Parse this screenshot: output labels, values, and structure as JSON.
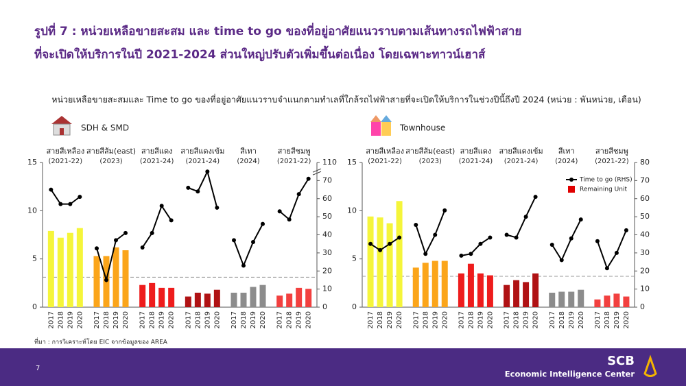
{
  "slide": {
    "title_lines": [
      "รูปที่ 7 : หน่วยเหลือขายสะสม และ time to go ของที่อยู่อาศัยแนวราบตามเส้นทางรถไฟฟ้าสาย",
      "ที่จะเปิดให้บริการในปี 2021-2024 ส่วนใหญ่ปรับตัวเพิ่มขึ้นต่อเนื่อง โดยเฉพาะทาวน์เฮาส์"
    ],
    "subtitle": "หน่วยเหลือขายสะสมและ Time to go ของที่อยู่อาศัยแนวราบจำแนกตามทำเลที่ใกล้รถไฟฟ้าสายที่จะเปิดให้บริการในช่วงปีนี้ถึงปี 2024 (หน่วย : พันหน่วย, เดือน)",
    "source": "ที่มา : การวิเคราะห์โดย EIC จากข้อมูลของ AREA",
    "page_number": "7",
    "brand": "SCB",
    "brand_subtitle": "Economic Intelligence Center"
  },
  "chart_data": [
    {
      "type": "combo",
      "title": "SDH & SMD",
      "line_color": "#000000",
      "ylim": [
        0,
        15
      ],
      "yticks": [
        0,
        5,
        10,
        15
      ],
      "y2lim": [
        0,
        110
      ],
      "y2ticks": [
        0,
        10,
        20,
        30,
        40,
        50,
        60,
        70,
        110
      ],
      "y2break": [
        75,
        105
      ],
      "reference_line": 3.1,
      "groups": [
        {
          "name": "สายสีเหลือง",
          "period": "(2021-22)",
          "color": "#f5f53a",
          "categories": [
            "2017",
            "2018",
            "2019",
            "2020"
          ],
          "values": [
            7.9,
            7.2,
            7.7,
            8.2
          ],
          "time_to_go": [
            65,
            57,
            57,
            61
          ]
        },
        {
          "name": "สายสีส้ม(east)",
          "period": "(2023)",
          "color": "#fba51a",
          "categories": [
            "2017",
            "2018",
            "2019",
            "2020"
          ],
          "values": [
            5.3,
            5.3,
            6.2,
            5.9
          ],
          "time_to_go": [
            32.5,
            15,
            37,
            41
          ]
        },
        {
          "name": "สายสีแดง",
          "period": "(2021-24)",
          "color": "#ee1c1c",
          "categories": [
            "2017",
            "2018",
            "2019",
            "2020"
          ],
          "values": [
            2.3,
            2.5,
            2.0,
            2.0
          ],
          "time_to_go": [
            33,
            41,
            56,
            48
          ]
        },
        {
          "name": "สายสีแดงเข้ม",
          "period": "(2021-24)",
          "color": "#b01214",
          "categories": [
            "2017",
            "2018",
            "2019",
            "2020"
          ],
          "values": [
            1.1,
            1.5,
            1.4,
            1.8
          ],
          "time_to_go": [
            66,
            64,
            105,
            55
          ]
        },
        {
          "name": "สีเทา",
          "period": "(2024)",
          "color": "#8c8c8c",
          "categories": [
            "2017",
            "2018",
            "2019",
            "2020"
          ],
          "values": [
            1.5,
            1.5,
            2.1,
            2.3
          ],
          "time_to_go": [
            37,
            23,
            36,
            46
          ]
        },
        {
          "name": "สายสีชมพู",
          "period": "(2021-22)",
          "color": "#f2403f",
          "categories": [
            "2017",
            "2018",
            "2019",
            "2020"
          ],
          "values": [
            1.2,
            1.4,
            2.0,
            1.9
          ],
          "time_to_go": [
            53,
            48.5,
            62.5,
            71
          ]
        }
      ]
    },
    {
      "type": "combo",
      "title": "Townhouse",
      "line_color": "#000000",
      "ylim": [
        0,
        15
      ],
      "yticks": [
        0,
        5,
        10,
        15
      ],
      "y2lim": [
        0,
        80
      ],
      "y2ticks": [
        0,
        10,
        20,
        30,
        40,
        50,
        60,
        70,
        80
      ],
      "reference_line": 3.2,
      "legend": [
        {
          "name": "Time to go (RHS)",
          "color": "#000000"
        },
        {
          "name": "Remaining Unit",
          "color": "#e00000"
        }
      ],
      "groups": [
        {
          "name": "สายสีเหลือง",
          "period": "(2021-22)",
          "color": "#f5f53a",
          "categories": [
            "2017",
            "2018",
            "2019",
            "2020"
          ],
          "values": [
            9.4,
            9.3,
            8.7,
            11.0
          ],
          "time_to_go": [
            35,
            31.5,
            35,
            38.5
          ]
        },
        {
          "name": "สายสีส้ม(east)",
          "period": "(2023)",
          "color": "#fba51a",
          "categories": [
            "2017",
            "2018",
            "2019",
            "2020"
          ],
          "values": [
            4.1,
            4.6,
            4.8,
            4.8
          ],
          "time_to_go": [
            45.5,
            29.5,
            40,
            53.5
          ]
        },
        {
          "name": "สายสีแดง",
          "period": "(2021-24)",
          "color": "#ee1c1c",
          "categories": [
            "2017",
            "2018",
            "2019",
            "2020"
          ],
          "values": [
            3.5,
            4.5,
            3.5,
            3.3
          ],
          "time_to_go": [
            28.5,
            29.5,
            35,
            38.5
          ]
        },
        {
          "name": "สายสีแดงเข้ม",
          "period": "(2021-24)",
          "color": "#b01214",
          "categories": [
            "2017",
            "2018",
            "2019",
            "2020"
          ],
          "values": [
            2.3,
            2.8,
            2.6,
            3.5
          ],
          "time_to_go": [
            40,
            38.5,
            50,
            61
          ]
        },
        {
          "name": "สีเทา",
          "period": "(2024)",
          "color": "#8c8c8c",
          "categories": [
            "2017",
            "2018",
            "2019",
            "2020"
          ],
          "values": [
            1.5,
            1.6,
            1.6,
            1.8
          ],
          "time_to_go": [
            34.5,
            26,
            38,
            48.5
          ]
        },
        {
          "name": "สายสีชมพู",
          "period": "(2021-22)",
          "color": "#f2403f",
          "categories": [
            "2017",
            "2018",
            "2019",
            "2020"
          ],
          "values": [
            0.8,
            1.2,
            1.4,
            1.1
          ],
          "time_to_go": [
            36.5,
            21.5,
            30,
            42.5
          ]
        }
      ]
    }
  ]
}
